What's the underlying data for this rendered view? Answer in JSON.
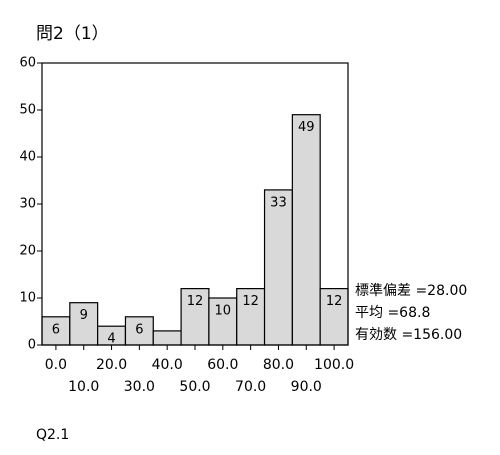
{
  "chart_data": {
    "type": "histogram",
    "title": "問2（1）",
    "bins": [
      -5,
      5,
      15,
      25,
      35,
      45,
      55,
      65,
      75,
      85,
      95,
      105
    ],
    "values": [
      6,
      9,
      4,
      6,
      3,
      12,
      10,
      12,
      33,
      49,
      12
    ],
    "value_labels": [
      "6",
      "9",
      "4",
      "6",
      null,
      "12",
      "10",
      "12",
      "33",
      "49",
      "12"
    ],
    "color": "#d9d9d9",
    "xlim": [
      -5,
      105
    ],
    "xticks": [
      {
        "value": 0,
        "label": "0.0"
      },
      {
        "value": 10,
        "label": "10.0"
      },
      {
        "value": 20,
        "label": "20.0"
      },
      {
        "value": 30,
        "label": "30.0"
      },
      {
        "value": 40,
        "label": "40.0"
      },
      {
        "value": 50,
        "label": "50.0"
      },
      {
        "value": 60,
        "label": "60.0"
      },
      {
        "value": 70,
        "label": "70.0"
      },
      {
        "value": 80,
        "label": "80.0"
      },
      {
        "value": 90,
        "label": "90.0"
      },
      {
        "value": 100,
        "label": "100.0"
      }
    ],
    "ylim": [
      0,
      60
    ],
    "yticks": [
      0,
      10,
      20,
      30,
      40,
      50,
      60
    ],
    "annotations": [
      "標準偏差 =28.00",
      "平均 =68.8",
      "有効数 =156.00"
    ],
    "xlabel": "Q2.1"
  }
}
